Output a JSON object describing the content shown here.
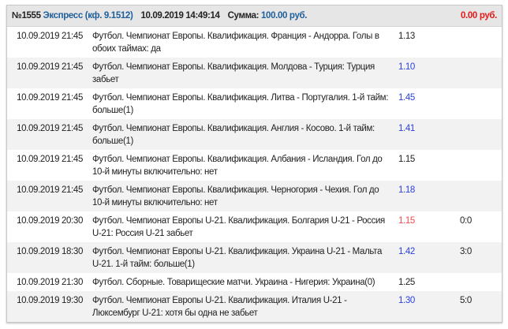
{
  "bet": {
    "number": "№1555",
    "type": "Экспресс (кф. 9.1512)",
    "datetime": "10.09.2019 14:49:14",
    "sum_label": "Сумма:",
    "sum_value": "100.00 руб.",
    "payout": "0.00 руб."
  },
  "colors": {
    "odds_blue": "#2a3ee0",
    "odds_red": "#f04848",
    "payout": "#e81818",
    "link": "#1f5f9a"
  },
  "events": [
    {
      "date": "10.09.2019 21:45",
      "desc": "Футбол. Чемпионат Европы. Квалификация. Франция - Андорра. Голы в обоих таймах: да",
      "odds": "1.13",
      "odds_color": "default",
      "score": ""
    },
    {
      "date": "10.09.2019 21:45",
      "desc": "Футбол. Чемпионат Европы. Квалификация. Молдова - Турция: Турция забьет",
      "odds": "1.10",
      "odds_color": "blue",
      "score": ""
    },
    {
      "date": "10.09.2019 21:45",
      "desc": "Футбол. Чемпионат Европы. Квалификация. Литва - Португалия. 1-й тайм: больше(1)",
      "odds": "1.45",
      "odds_color": "blue",
      "score": ""
    },
    {
      "date": "10.09.2019 21:45",
      "desc": "Футбол. Чемпионат Европы. Квалификация. Англия - Косово. 1-й тайм: больше(1)",
      "odds": "1.41",
      "odds_color": "blue",
      "score": ""
    },
    {
      "date": "10.09.2019 21:45",
      "desc": "Футбол. Чемпионат Европы. Квалификация. Албания - Исландия. Гол до 10-й минуты включительно: нет",
      "odds": "1.15",
      "odds_color": "default",
      "score": ""
    },
    {
      "date": "10.09.2019 21:45",
      "desc": "Футбол. Чемпионат Европы. Квалификация. Черногория - Чехия. Гол до 10-й минуты включительно: нет",
      "odds": "1.18",
      "odds_color": "blue",
      "score": ""
    },
    {
      "date": "10.09.2019 20:30",
      "desc": "Футбол. Чемпионат Европы U-21. Квалификация. Болгария U-21 - Россия U-21: Россия U-21 забьет",
      "odds": "1.15",
      "odds_color": "red",
      "score": "0:0"
    },
    {
      "date": "10.09.2019 18:30",
      "desc": "Футбол. Чемпионат Европы U-21. Квалификация. Украина U-21 - Мальта U-21. 1-й тайм: больше(1)",
      "odds": "1.42",
      "odds_color": "blue",
      "score": "3:0"
    },
    {
      "date": "10.09.2019 21:30",
      "desc": "Футбол. Сборные. Товарищеские матчи. Украина - Нигерия: Украина(0)",
      "odds": "1.25",
      "odds_color": "default",
      "score": ""
    },
    {
      "date": "10.09.2019 19:30",
      "desc": "Футбол. Чемпионат Европы U-21. Квалификация. Италия U-21 - Люксембург U-21: хотя бы одна не забьет",
      "odds": "1.30",
      "odds_color": "blue",
      "score": "5:0"
    }
  ]
}
